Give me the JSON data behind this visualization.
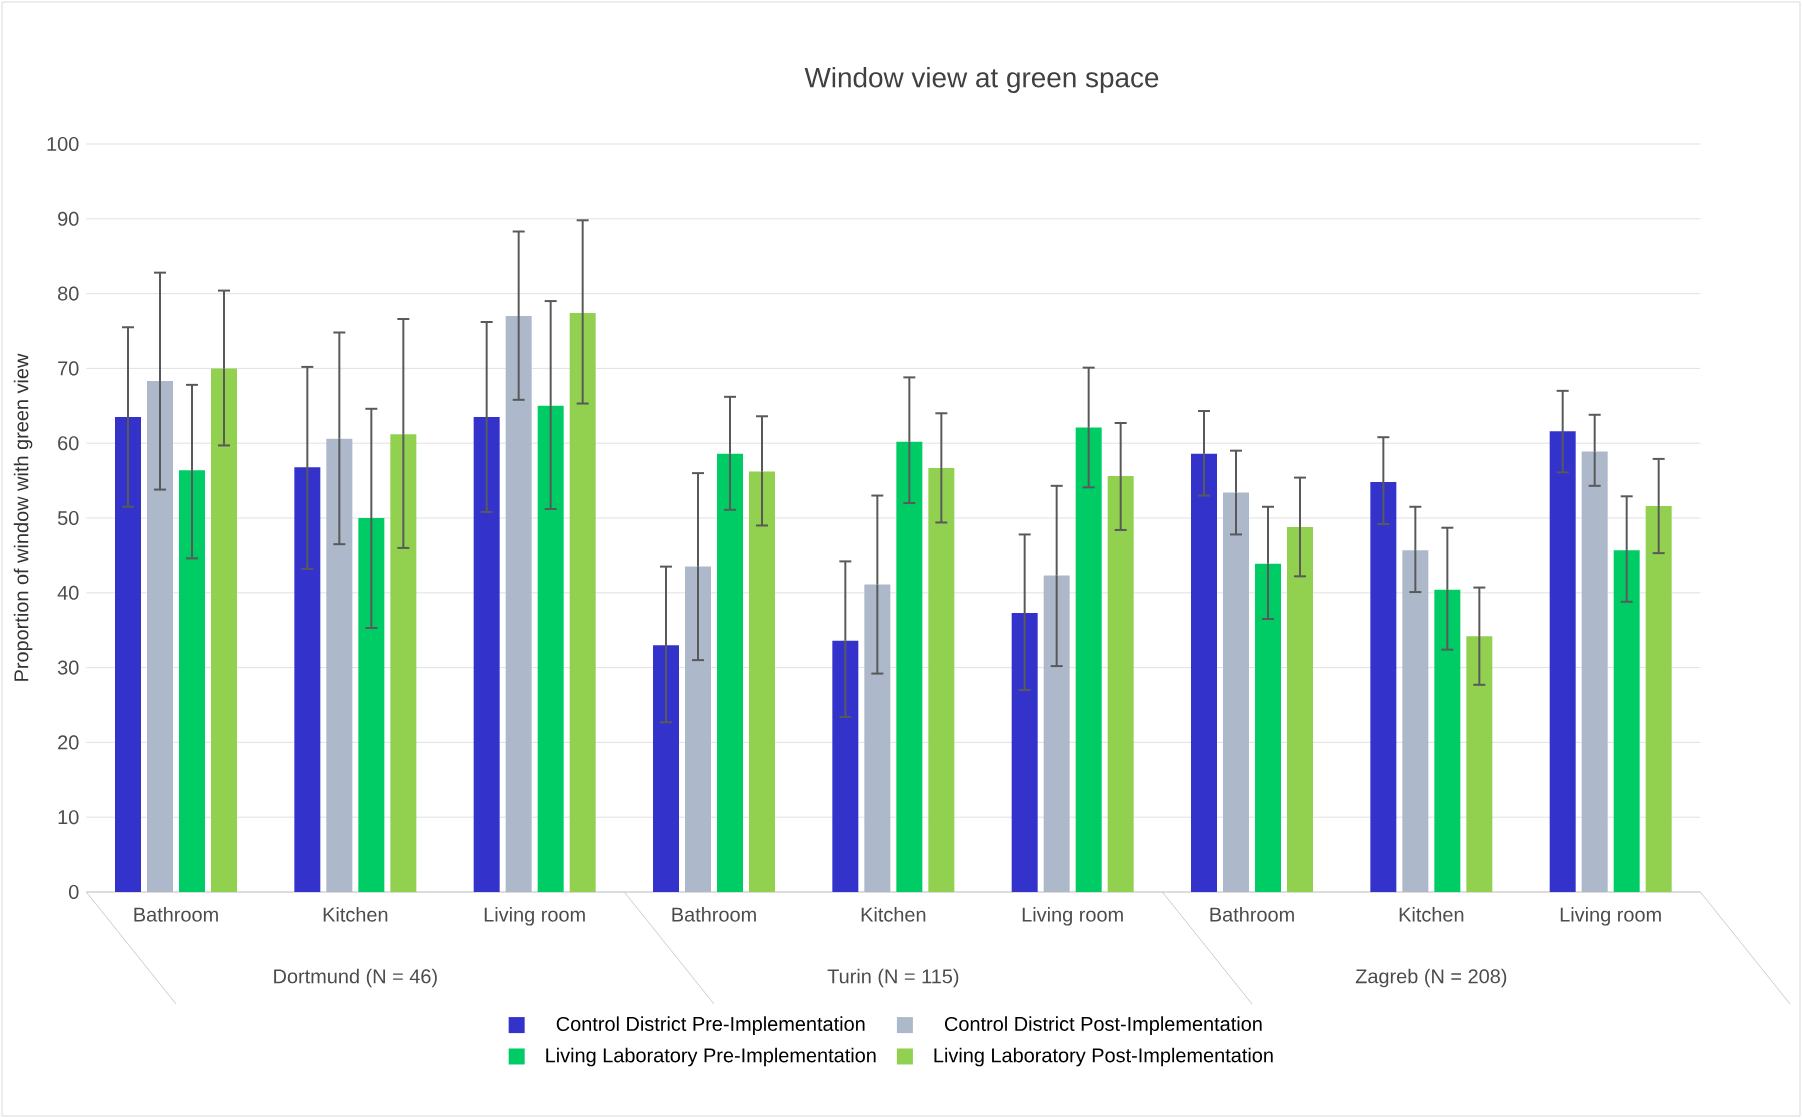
{
  "chart_data": {
    "type": "bar",
    "title": "Window view at green space",
    "ylabel": "Proportion of window with green view",
    "categories": [
      "Bathroom",
      "Kitchen",
      "Living room",
      "Bathroom",
      "Kitchen",
      "Living room",
      "Bathroom",
      "Kitchen",
      "Living room"
    ],
    "annotations": [
      "Dortmund  (N = 46)",
      "Turin (N = 115)",
      "Zagreb (N = 208)"
    ],
    "series": [
      {
        "name": "Control District Pre-Implementation",
        "color": "#3333cc",
        "values": [
          63.5,
          56.8,
          63.5,
          33.0,
          33.6,
          37.3,
          58.6,
          54.8,
          61.6
        ],
        "errors": [
          [
            51.5,
            75.5
          ],
          [
            43.2,
            70.2
          ],
          [
            50.8,
            76.2
          ],
          [
            22.7,
            43.5
          ],
          [
            23.4,
            44.2
          ],
          [
            27.0,
            47.8
          ],
          [
            53.0,
            64.3
          ],
          [
            49.2,
            60.8
          ],
          [
            56.1,
            67.0
          ]
        ]
      },
      {
        "name": "Control District Post-Implementation",
        "color": "#adb9ca",
        "values": [
          68.3,
          60.6,
          77.0,
          43.5,
          41.1,
          42.3,
          53.4,
          45.7,
          58.9
        ],
        "errors": [
          [
            53.8,
            82.8
          ],
          [
            46.5,
            74.8
          ],
          [
            65.8,
            88.3
          ],
          [
            31.0,
            56.0
          ],
          [
            29.2,
            53.0
          ],
          [
            30.2,
            54.3
          ],
          [
            47.8,
            59.0
          ],
          [
            40.1,
            51.5
          ],
          [
            54.3,
            63.8
          ]
        ]
      },
      {
        "name": "Living Laboratory Pre-Implementation",
        "color": "#00cc66",
        "values": [
          56.4,
          50.0,
          65.0,
          58.6,
          60.2,
          62.1,
          43.9,
          40.4,
          45.7
        ],
        "errors": [
          [
            44.6,
            67.8
          ],
          [
            35.3,
            64.6
          ],
          [
            51.2,
            79.0
          ],
          [
            51.1,
            66.2
          ],
          [
            52.0,
            68.8
          ],
          [
            54.1,
            70.1
          ],
          [
            36.5,
            51.5
          ],
          [
            32.4,
            48.7
          ],
          [
            38.8,
            52.9
          ]
        ]
      },
      {
        "name": "Living Laboratory Post-Implementation",
        "color": "#92d050",
        "values": [
          70.0,
          61.2,
          77.4,
          56.2,
          56.7,
          55.6,
          48.8,
          34.2,
          51.6
        ],
        "errors": [
          [
            59.7,
            80.4
          ],
          [
            46.0,
            76.6
          ],
          [
            65.3,
            89.8
          ],
          [
            49.0,
            63.6
          ],
          [
            49.4,
            64.0
          ],
          [
            48.4,
            62.7
          ],
          [
            42.2,
            55.4
          ],
          [
            27.7,
            40.7
          ],
          [
            45.3,
            57.9
          ]
        ]
      }
    ],
    "ylim": [
      0,
      100
    ],
    "yticks": [
      0,
      10,
      20,
      30,
      40,
      50,
      60,
      70,
      80,
      90,
      100
    ],
    "grid": "y",
    "legend": "bottom"
  }
}
